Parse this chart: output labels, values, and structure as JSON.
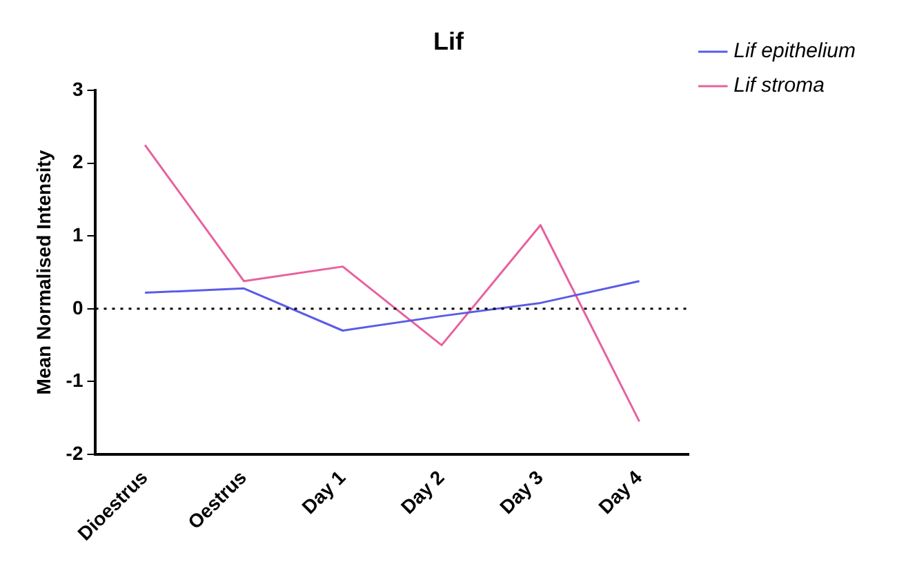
{
  "chart_data": {
    "type": "line",
    "title": "Lif",
    "ylabel": "Mean Normalised Intensity",
    "categories": [
      "Dioestrus",
      "Oestrus",
      "Day 1",
      "Day 2",
      "Day 3",
      "Day 4"
    ],
    "series": [
      {
        "name": "Lif epithelium",
        "color": "#5b5be8",
        "values": [
          0.22,
          0.28,
          -0.3,
          -0.1,
          0.08,
          0.38
        ]
      },
      {
        "name": "Lif stroma",
        "color": "#e8609e",
        "values": [
          2.25,
          0.38,
          0.58,
          -0.5,
          1.15,
          -1.55
        ]
      }
    ],
    "ylim": [
      -2,
      3
    ],
    "yticks": [
      -2,
      -1,
      0,
      1,
      2,
      3
    ],
    "ref_lines": [
      {
        "axis": "y",
        "value": 0,
        "color": "#000000",
        "line_style": "dotted"
      }
    ],
    "legend": "top right",
    "grid": false,
    "marker": "none",
    "line_style": "solid"
  }
}
